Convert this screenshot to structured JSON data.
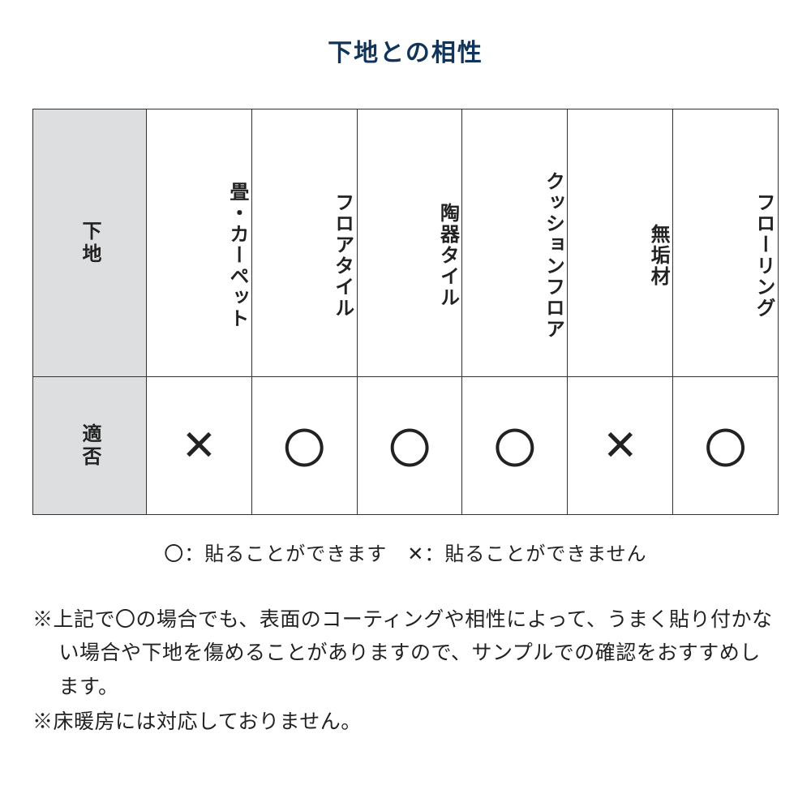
{
  "title": "下地との相性",
  "title_color": "#10345a",
  "table": {
    "row_header_1": "下地",
    "row_header_2": "適否",
    "header_bg": "#dddee0",
    "border_color": "#333333",
    "columns": [
      "畳・カーペット",
      "フロアタイル",
      "陶器タイル",
      "クッションフロア",
      "無垢材",
      "フローリング"
    ],
    "values": [
      "✕",
      "〇",
      "〇",
      "〇",
      "✕",
      "〇"
    ],
    "mark_font_size": 52,
    "col_font_size": 24
  },
  "legend": "〇：貼ることができます　✕：貼ることができません",
  "notes": [
    "※上記で〇の場合でも、表面のコーティングや相性によって、うまく貼り付かない場合や下地を傷めることがありますので、サンプルでの確認をおすすめします。",
    "※床暖房には対応しておりません。"
  ],
  "colors": {
    "background": "#ffffff",
    "text": "#222222"
  }
}
